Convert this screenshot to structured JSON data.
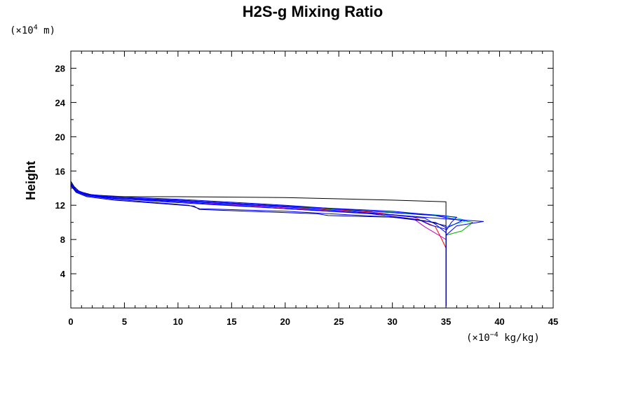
{
  "chart_data": {
    "type": "line",
    "title": "H2S-g Mixing Ratio",
    "ylabel": "Height",
    "y_unit_prefix": "(×10",
    "y_unit_exp": "4",
    "y_unit_suffix": " m)",
    "x_unit_prefix": "(×10",
    "x_unit_exp": "−4",
    "x_unit_suffix": " kg/kg)",
    "xlim": [
      0,
      45
    ],
    "ylim": [
      0,
      30
    ],
    "x_ticks": [
      0,
      5,
      10,
      15,
      20,
      25,
      30,
      35,
      40,
      45
    ],
    "y_ticks": [
      4,
      8,
      12,
      16,
      20,
      24,
      28
    ],
    "grid": false,
    "series": [
      {
        "color": "#000000",
        "values": [
          [
            35,
            0.2
          ],
          [
            35,
            8
          ],
          [
            35,
            10
          ],
          [
            35,
            12.4
          ],
          [
            30,
            12.6
          ],
          [
            20,
            12.9
          ],
          [
            10,
            13.0
          ],
          [
            5,
            13.0
          ],
          [
            2,
            13.2
          ],
          [
            0.8,
            13.6
          ],
          [
            0.3,
            14.2
          ],
          [
            0,
            14.8
          ]
        ]
      },
      {
        "color": "#00c8c8",
        "values": [
          [
            35,
            0.2
          ],
          [
            35,
            8
          ],
          [
            35,
            9.5
          ],
          [
            37,
            10.2
          ],
          [
            35,
            10.8
          ],
          [
            30,
            11.2
          ],
          [
            20,
            11.8
          ],
          [
            10,
            12.5
          ],
          [
            4,
            12.9
          ],
          [
            1.5,
            13.2
          ],
          [
            0.5,
            13.8
          ],
          [
            0,
            14.6
          ],
          [
            0,
            30
          ]
        ]
      },
      {
        "color": "#ff0000",
        "values": [
          [
            35,
            0.2
          ],
          [
            35,
            7.0
          ],
          [
            34.5,
            8.3
          ],
          [
            34,
            9.5
          ],
          [
            32,
            10.6
          ],
          [
            28,
            11.2
          ],
          [
            20,
            11.9
          ],
          [
            10,
            12.6
          ],
          [
            4,
            12.9
          ],
          [
            1.5,
            13.2
          ],
          [
            0.5,
            13.7
          ],
          [
            0,
            14.5
          ]
        ]
      },
      {
        "color": "#00b000",
        "values": [
          [
            35,
            0.2
          ],
          [
            35,
            8.5
          ],
          [
            36.5,
            9.0
          ],
          [
            37.5,
            10.0
          ],
          [
            34,
            10.8
          ],
          [
            28,
            11.3
          ],
          [
            20,
            11.9
          ],
          [
            10,
            12.6
          ],
          [
            4,
            12.9
          ],
          [
            1.5,
            13.2
          ],
          [
            0.5,
            13.7
          ],
          [
            0,
            14.6
          ]
        ]
      },
      {
        "color": "#c000c0",
        "values": [
          [
            35,
            0.2
          ],
          [
            35,
            8.0
          ],
          [
            33,
            9.5
          ],
          [
            32,
            10.4
          ],
          [
            28,
            11.0
          ],
          [
            20,
            11.7
          ],
          [
            10,
            12.5
          ],
          [
            4,
            12.9
          ],
          [
            1.5,
            13.2
          ],
          [
            0.5,
            13.7
          ],
          [
            0,
            14.4
          ]
        ]
      },
      {
        "color": "#0000ff",
        "values": [
          [
            35,
            0.2
          ],
          [
            35,
            8.5
          ],
          [
            36,
            9.6
          ],
          [
            38.5,
            10.1
          ],
          [
            35,
            10.4
          ],
          [
            30,
            10.9
          ],
          [
            20,
            11.6
          ],
          [
            10,
            12.4
          ],
          [
            4,
            12.8
          ],
          [
            1.5,
            13.1
          ],
          [
            0.5,
            13.6
          ],
          [
            0,
            14.4
          ]
        ]
      },
      {
        "color": "#0000ff",
        "values": [
          [
            35,
            0.2
          ],
          [
            35,
            8.8
          ],
          [
            34,
            9.8
          ],
          [
            33,
            10.5
          ],
          [
            28,
            11.1
          ],
          [
            20,
            11.8
          ],
          [
            10,
            12.5
          ],
          [
            4,
            12.9
          ],
          [
            1.5,
            13.2
          ],
          [
            0.5,
            13.7
          ],
          [
            0,
            14.5
          ]
        ]
      },
      {
        "color": "#0000ff",
        "values": [
          [
            35,
            0.2
          ],
          [
            35,
            9.0
          ],
          [
            35.5,
            10.0
          ],
          [
            36,
            10.6
          ],
          [
            30,
            11.3
          ],
          [
            20,
            11.9
          ],
          [
            10,
            12.6
          ],
          [
            4,
            12.9
          ],
          [
            1.5,
            13.3
          ],
          [
            0.5,
            13.8
          ],
          [
            0,
            14.6
          ]
        ]
      },
      {
        "color": "#0000ff",
        "values": [
          [
            35,
            0.2
          ],
          [
            35,
            9.2
          ],
          [
            33.5,
            9.7
          ],
          [
            32.5,
            10.3
          ],
          [
            28,
            11.0
          ],
          [
            20,
            11.6
          ],
          [
            10,
            12.3
          ],
          [
            4,
            12.8
          ],
          [
            1.5,
            13.2
          ],
          [
            0.5,
            13.7
          ],
          [
            0,
            14.5
          ]
        ]
      },
      {
        "color": "#0000ff",
        "values": [
          [
            35,
            0.2
          ],
          [
            35,
            9.3
          ],
          [
            36.5,
            10.2
          ],
          [
            34,
            10.8
          ],
          [
            28,
            11.3
          ],
          [
            20,
            12.0
          ],
          [
            10,
            12.7
          ],
          [
            4,
            13.0
          ],
          [
            1.5,
            13.3
          ],
          [
            0.5,
            13.8
          ],
          [
            0,
            14.6
          ]
        ]
      },
      {
        "color": "#0000ff",
        "values": [
          [
            35,
            0.2
          ],
          [
            35,
            9.4
          ],
          [
            34,
            10.0
          ],
          [
            30,
            10.6
          ],
          [
            20,
            11.3
          ],
          [
            12,
            11.6
          ],
          [
            11,
            12.0
          ],
          [
            4,
            12.7
          ],
          [
            1.5,
            13.1
          ],
          [
            0.5,
            13.6
          ],
          [
            0,
            14.4
          ]
        ]
      },
      {
        "color": "#00008b",
        "values": [
          [
            35,
            0.2
          ],
          [
            35,
            9.6
          ],
          [
            33,
            10.2
          ],
          [
            30,
            10.6
          ],
          [
            24,
            10.8
          ],
          [
            23,
            11.0
          ],
          [
            12,
            11.5
          ],
          [
            11.5,
            11.9
          ],
          [
            4,
            12.6
          ],
          [
            1.5,
            13.0
          ],
          [
            0.5,
            13.5
          ],
          [
            0,
            14.3
          ]
        ]
      }
    ]
  }
}
